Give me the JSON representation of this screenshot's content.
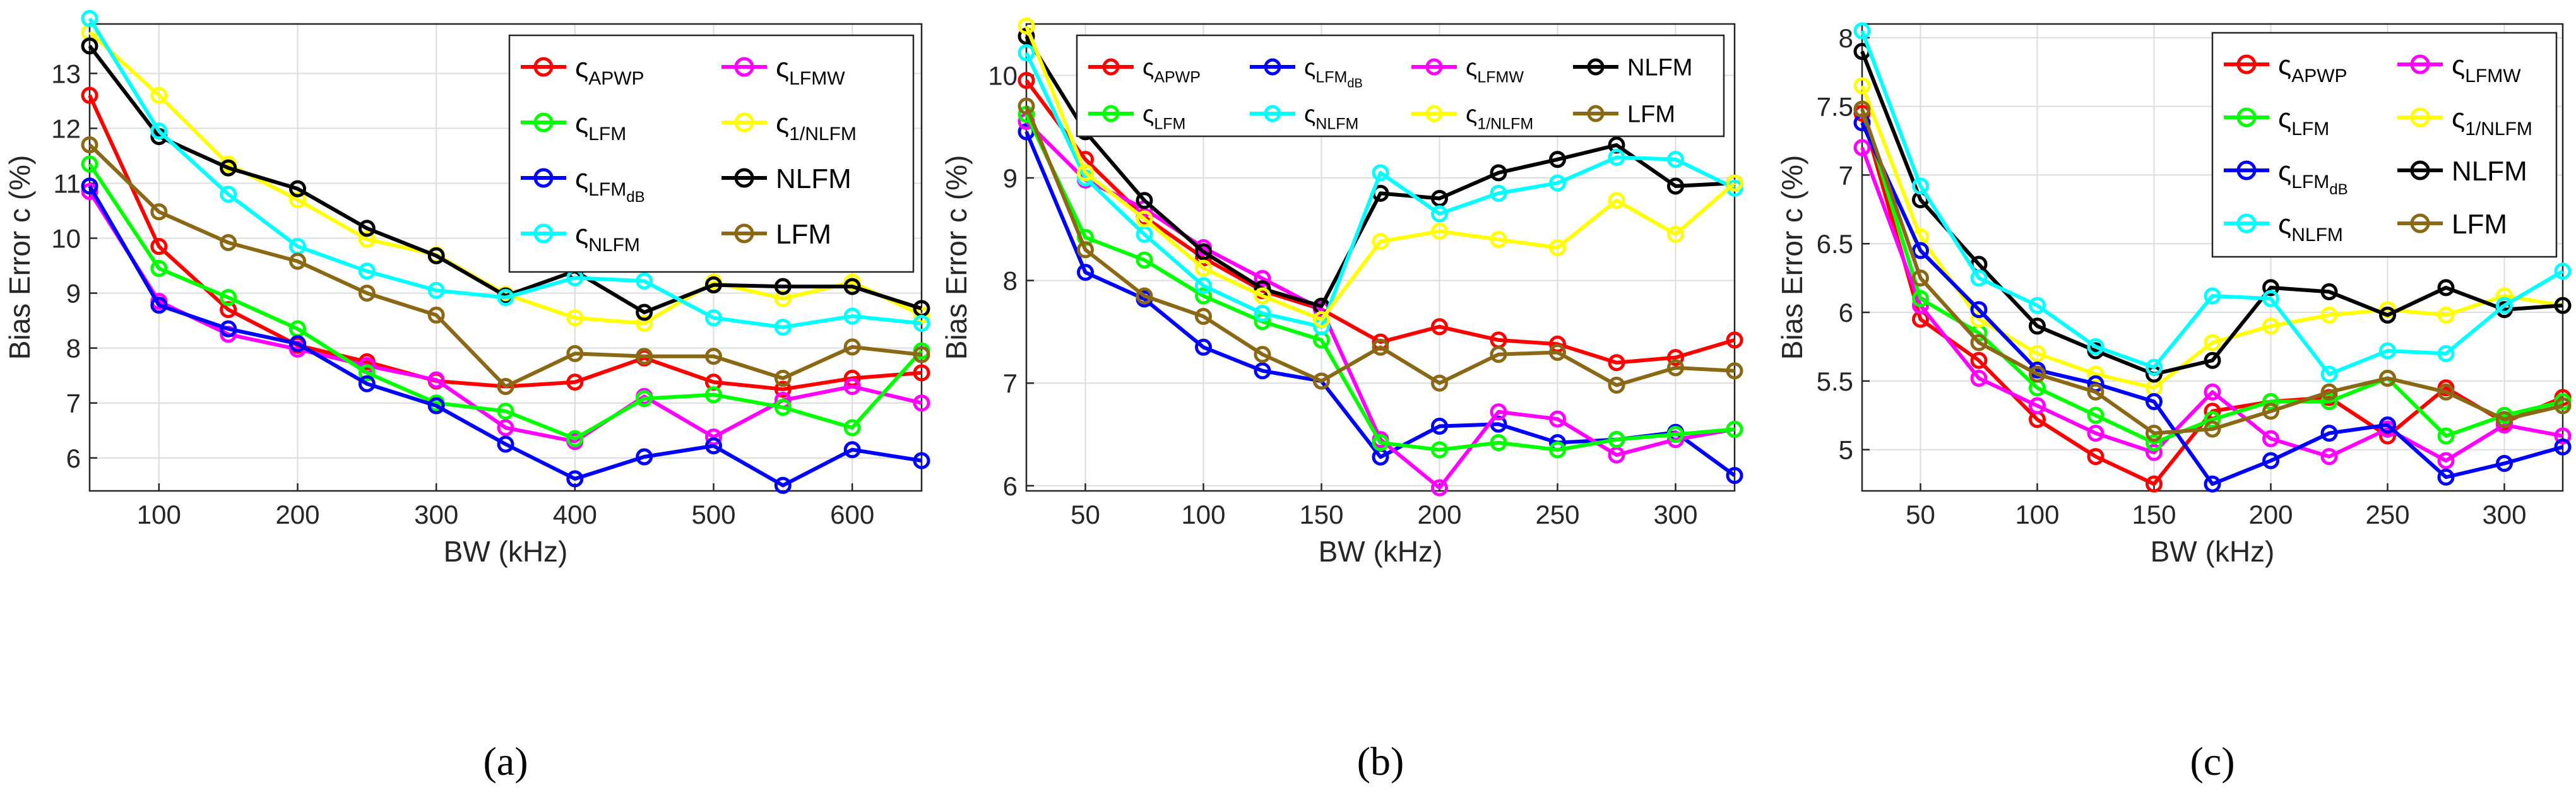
{
  "colors": {
    "APWP": "#ff0000",
    "LFMW": "#ff00ff",
    "LFM_c": "#00ff00",
    "1NLFM": "#ffff00",
    "LFMdB": "#0000ff",
    "NLFM": "#000000",
    "NLFM_c": "#00ffff",
    "LFM": "#8b6914"
  },
  "chart_data": [
    {
      "type": "line",
      "panel_label": "(a)",
      "xlabel": "BW (kHz)",
      "ylabel": "Bias Error  c (%)",
      "xlim": [
        50,
        650
      ],
      "ylim": [
        5.4,
        13.9
      ],
      "xticks": [
        100,
        200,
        300,
        400,
        500,
        600
      ],
      "yticks": [
        6,
        7,
        8,
        9,
        10,
        11,
        12,
        13
      ],
      "grid": true,
      "legend_position": "top-right",
      "legend_columns": 2,
      "x": [
        50,
        100,
        150,
        200,
        250,
        300,
        350,
        400,
        450,
        500,
        550,
        600,
        650
      ],
      "series": [
        {
          "key": "APWP",
          "name": "ς",
          "sub": "APWP",
          "values": [
            12.6,
            9.85,
            8.7,
            8.05,
            7.75,
            7.4,
            7.3,
            7.38,
            7.82,
            7.38,
            7.25,
            7.45,
            7.55
          ]
        },
        {
          "key": "LFMW",
          "name": "ς",
          "sub": "LFMW",
          "values": [
            10.85,
            8.85,
            8.25,
            7.98,
            7.68,
            7.42,
            6.55,
            6.3,
            7.12,
            6.38,
            7.05,
            7.3,
            7.0
          ]
        },
        {
          "key": "LFM_c",
          "name": "ς",
          "sub": "LFM",
          "values": [
            11.35,
            9.45,
            8.92,
            8.35,
            7.55,
            7.0,
            6.85,
            6.35,
            7.08,
            7.15,
            6.92,
            6.55,
            7.95
          ]
        },
        {
          "key": "1NLFM",
          "name": "ς",
          "sub": "1/NLFM",
          "values": [
            13.75,
            12.6,
            11.35,
            10.7,
            9.98,
            9.7,
            8.98,
            8.55,
            8.45,
            9.2,
            8.9,
            9.2,
            8.6
          ]
        },
        {
          "key": "LFMdB",
          "name": "ς",
          "sub": "LFM",
          "subsub": "dB",
          "values": [
            10.95,
            8.78,
            8.35,
            8.08,
            7.35,
            6.95,
            6.25,
            5.62,
            6.02,
            6.22,
            5.5,
            6.15,
            5.95
          ]
        },
        {
          "key": "NLFM",
          "name": "NLFM",
          "values": [
            13.5,
            11.85,
            11.28,
            10.9,
            10.18,
            9.68,
            8.95,
            9.4,
            8.65,
            9.15,
            9.12,
            9.12,
            8.72
          ]
        },
        {
          "key": "NLFM_c",
          "name": "ς",
          "sub": "NLFM",
          "values": [
            14.0,
            11.95,
            10.8,
            9.85,
            9.4,
            9.05,
            8.92,
            9.28,
            9.22,
            8.55,
            8.38,
            8.58,
            8.45
          ]
        },
        {
          "key": "LFM",
          "name": "LFM",
          "values": [
            11.7,
            10.48,
            9.92,
            9.58,
            9.0,
            8.6,
            7.3,
            7.9,
            7.85,
            7.85,
            7.45,
            8.02,
            7.88
          ]
        }
      ]
    },
    {
      "type": "line",
      "panel_label": "(b)",
      "xlabel": "BW (kHz)",
      "ylabel": "Bias Error  c (%)",
      "xlim": [
        25,
        325
      ],
      "ylim": [
        5.95,
        10.5
      ],
      "xticks": [
        50,
        100,
        150,
        200,
        250,
        300
      ],
      "yticks": [
        6,
        7,
        8,
        9,
        10
      ],
      "grid": true,
      "legend_position": "top-right",
      "legend_columns": 4,
      "x": [
        25,
        50,
        75,
        100,
        125,
        150,
        175,
        200,
        225,
        250,
        275,
        300,
        325
      ],
      "series": [
        {
          "key": "APWP",
          "name": "ς",
          "sub": "APWP",
          "values": [
            9.95,
            9.18,
            8.62,
            8.22,
            7.9,
            7.72,
            7.4,
            7.55,
            7.42,
            7.38,
            7.2,
            7.25,
            7.42
          ]
        },
        {
          "key": "LFMdB",
          "name": "ς",
          "sub": "LFM",
          "subsub": "dB",
          "values": [
            9.45,
            8.08,
            7.82,
            7.35,
            7.12,
            7.02,
            6.28,
            6.58,
            6.6,
            6.42,
            6.45,
            6.52,
            6.1
          ]
        },
        {
          "key": "LFMW",
          "name": "ς",
          "sub": "LFMW",
          "values": [
            9.55,
            8.98,
            8.7,
            8.32,
            8.02,
            7.72,
            6.45,
            5.98,
            6.72,
            6.65,
            6.3,
            6.45,
            6.55
          ]
        },
        {
          "key": "NLFM",
          "name": "NLFM",
          "values": [
            10.38,
            9.45,
            8.78,
            8.28,
            7.92,
            7.75,
            8.85,
            8.8,
            9.05,
            9.18,
            9.32,
            8.92,
            8.95
          ]
        },
        {
          "key": "LFM_c",
          "name": "ς",
          "sub": "LFM",
          "values": [
            9.62,
            8.42,
            8.2,
            7.85,
            7.6,
            7.42,
            6.42,
            6.35,
            6.42,
            6.35,
            6.45,
            6.5,
            6.55
          ]
        },
        {
          "key": "NLFM_c",
          "name": "ς",
          "sub": "NLFM",
          "values": [
            10.22,
            9.0,
            8.45,
            7.95,
            7.68,
            7.55,
            9.05,
            8.65,
            8.85,
            8.95,
            9.2,
            9.18,
            8.9
          ]
        },
        {
          "key": "1NLFM",
          "name": "ς",
          "sub": "1/NLFM",
          "values": [
            10.48,
            9.05,
            8.6,
            8.12,
            7.85,
            7.62,
            8.38,
            8.48,
            8.4,
            8.32,
            8.78,
            8.45,
            8.95
          ]
        },
        {
          "key": "LFM",
          "name": "LFM",
          "values": [
            9.7,
            8.3,
            7.85,
            7.65,
            7.28,
            7.02,
            7.35,
            7.0,
            7.28,
            7.3,
            6.98,
            7.15,
            7.12
          ]
        }
      ]
    },
    {
      "type": "line",
      "panel_label": "(c)",
      "xlabel": "BW (kHz)",
      "ylabel": "Bias Error  c (%)",
      "xlim": [
        25,
        325
      ],
      "ylim": [
        4.7,
        8.1
      ],
      "xticks": [
        50,
        100,
        150,
        200,
        250,
        300
      ],
      "yticks": [
        5,
        5.5,
        6,
        6.5,
        7,
        7.5,
        8
      ],
      "grid": true,
      "legend_position": "top-right",
      "legend_columns": 2,
      "x": [
        25,
        50,
        75,
        100,
        125,
        150,
        175,
        200,
        225,
        250,
        275,
        300,
        325
      ],
      "series": [
        {
          "key": "APWP",
          "name": "ς",
          "sub": "APWP",
          "values": [
            7.45,
            5.95,
            5.65,
            5.22,
            4.95,
            4.75,
            5.28,
            5.35,
            5.38,
            5.1,
            5.45,
            5.2,
            5.38
          ]
        },
        {
          "key": "LFMW",
          "name": "ς",
          "sub": "LFMW",
          "values": [
            7.2,
            6.05,
            5.52,
            5.32,
            5.12,
            4.98,
            5.42,
            5.08,
            4.95,
            5.15,
            4.92,
            5.18,
            5.1
          ]
        },
        {
          "key": "LFM_c",
          "name": "ς",
          "sub": "LFM",
          "values": [
            7.48,
            6.1,
            5.85,
            5.45,
            5.25,
            5.05,
            5.22,
            5.35,
            5.35,
            5.52,
            5.1,
            5.25,
            5.35
          ]
        },
        {
          "key": "1NLFM",
          "name": "ς",
          "sub": "1/NLFM",
          "values": [
            7.65,
            6.55,
            5.95,
            5.7,
            5.55,
            5.45,
            5.78,
            5.9,
            5.98,
            6.02,
            5.98,
            6.12,
            6.05
          ]
        },
        {
          "key": "LFMdB",
          "name": "ς",
          "sub": "LFM",
          "subsub": "dB",
          "values": [
            7.38,
            6.45,
            6.02,
            5.58,
            5.48,
            5.35,
            4.75,
            4.92,
            5.12,
            5.18,
            4.8,
            4.9,
            5.02
          ]
        },
        {
          "key": "NLFM",
          "name": "NLFM",
          "values": [
            7.9,
            6.82,
            6.35,
            5.9,
            5.72,
            5.55,
            5.65,
            6.18,
            6.15,
            5.98,
            6.18,
            6.02,
            6.05
          ]
        },
        {
          "key": "NLFM_c",
          "name": "ς",
          "sub": "NLFM",
          "values": [
            8.05,
            6.92,
            6.25,
            6.05,
            5.75,
            5.6,
            6.12,
            6.1,
            5.55,
            5.72,
            5.7,
            6.05,
            6.3
          ]
        },
        {
          "key": "LFM",
          "name": "LFM",
          "values": [
            7.48,
            6.25,
            5.78,
            5.55,
            5.42,
            5.12,
            5.15,
            5.28,
            5.42,
            5.52,
            5.42,
            5.22,
            5.32
          ]
        }
      ]
    }
  ]
}
